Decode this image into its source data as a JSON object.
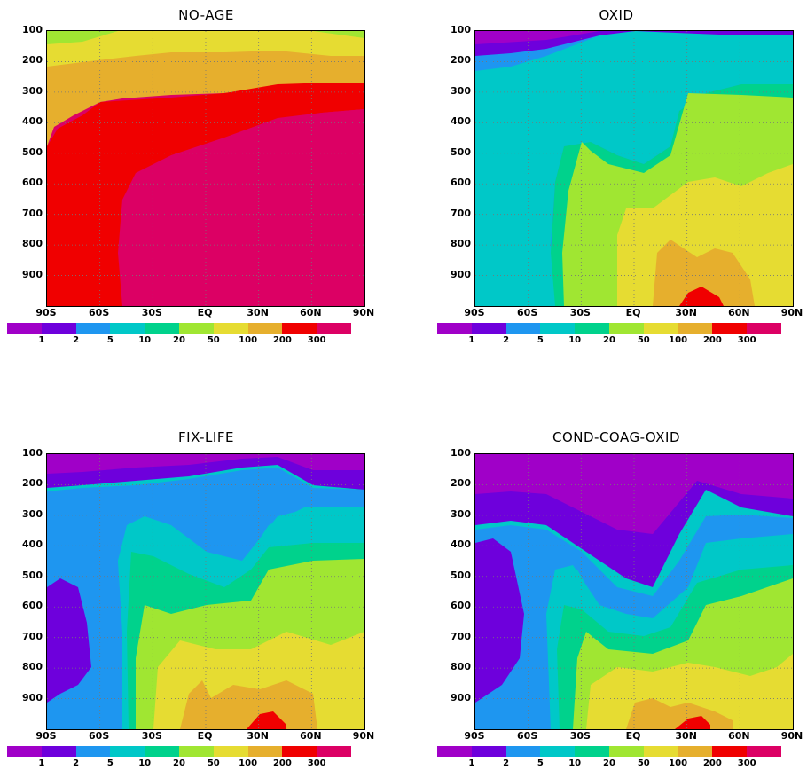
{
  "chart_data": [
    {
      "type": "heatmap",
      "title": "NO-AGE",
      "x_ticks": [
        "90S",
        "60S",
        "30S",
        "EQ",
        "30N",
        "60N",
        "90N"
      ],
      "y_ticks": [
        "100",
        "200",
        "300",
        "400",
        "500",
        "600",
        "700",
        "800",
        "900"
      ],
      "xlim": [
        -90,
        90
      ],
      "ylim": [
        1000,
        100
      ],
      "grid": true,
      "colorbar_levels": [
        "1",
        "2",
        "5",
        "10",
        "20",
        "50",
        "100",
        "200",
        "300"
      ]
    },
    {
      "type": "heatmap",
      "title": "OXID",
      "x_ticks": [
        "90S",
        "60S",
        "30S",
        "EQ",
        "30N",
        "60N",
        "90N"
      ],
      "y_ticks": [
        "100",
        "200",
        "300",
        "400",
        "500",
        "600",
        "700",
        "800",
        "900"
      ],
      "xlim": [
        -90,
        90
      ],
      "ylim": [
        1000,
        100
      ],
      "grid": true,
      "colorbar_levels": [
        "1",
        "2",
        "5",
        "10",
        "20",
        "50",
        "100",
        "200",
        "300"
      ]
    },
    {
      "type": "heatmap",
      "title": "FIX-LIFE",
      "x_ticks": [
        "90S",
        "60S",
        "30S",
        "EQ",
        "30N",
        "60N",
        "90N"
      ],
      "y_ticks": [
        "100",
        "200",
        "300",
        "400",
        "500",
        "600",
        "700",
        "800",
        "900"
      ],
      "xlim": [
        -90,
        90
      ],
      "ylim": [
        1000,
        100
      ],
      "grid": true,
      "colorbar_levels": [
        "1",
        "2",
        "5",
        "10",
        "20",
        "50",
        "100",
        "200",
        "300"
      ]
    },
    {
      "type": "heatmap",
      "title": "COND-COAG-OXID",
      "x_ticks": [
        "90S",
        "60S",
        "30S",
        "EQ",
        "30N",
        "60N",
        "90N"
      ],
      "y_ticks": [
        "100",
        "200",
        "300",
        "400",
        "500",
        "600",
        "700",
        "800",
        "900"
      ],
      "xlim": [
        -90,
        90
      ],
      "ylim": [
        1000,
        100
      ],
      "grid": true,
      "colorbar_levels": [
        "1",
        "2",
        "5",
        "10",
        "20",
        "50",
        "100",
        "200",
        "300"
      ]
    }
  ],
  "colors": [
    "#a000c8",
    "#6e00dc",
    "#1e96f0",
    "#00c8c8",
    "#00d28c",
    "#a0e632",
    "#e6dc32",
    "#e6af2d",
    "#f00000",
    "#dc0064"
  ]
}
